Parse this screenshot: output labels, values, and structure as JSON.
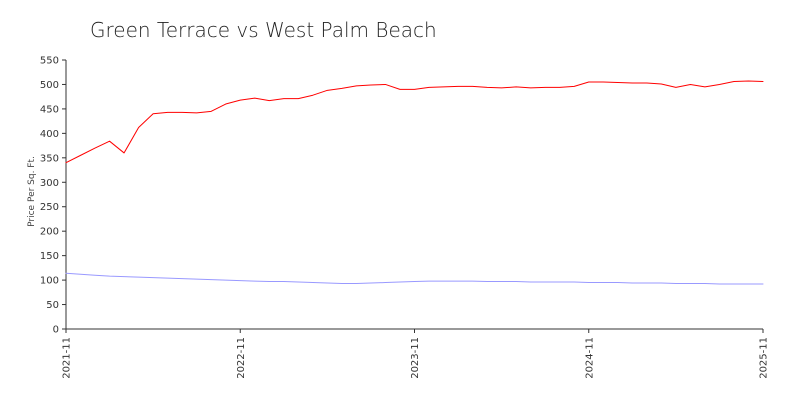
{
  "chart_data": {
    "type": "line",
    "title": "Green Terrace vs West Palm Beach",
    "xlabel": "",
    "ylabel": "Price Per Sq. Ft.",
    "ylim": [
      0,
      550
    ],
    "yticks": [
      0,
      50,
      100,
      150,
      200,
      250,
      300,
      350,
      400,
      450,
      500,
      550
    ],
    "x_tick_labels": [
      "2021-11",
      "2022-11",
      "2023-11",
      "2024-11",
      "2025-11"
    ],
    "x": [
      "2021-11",
      "2021-12",
      "2022-01",
      "2022-02",
      "2022-03",
      "2022-04",
      "2022-05",
      "2022-06",
      "2022-07",
      "2022-08",
      "2022-09",
      "2022-10",
      "2022-11",
      "2022-12",
      "2023-01",
      "2023-02",
      "2023-03",
      "2023-04",
      "2023-05",
      "2023-06",
      "2023-07",
      "2023-08",
      "2023-09",
      "2023-10",
      "2023-11",
      "2023-12",
      "2024-01",
      "2024-02",
      "2024-03",
      "2024-04",
      "2024-05",
      "2024-06",
      "2024-07",
      "2024-08",
      "2024-09",
      "2024-10",
      "2024-11",
      "2024-12",
      "2025-01",
      "2025-02",
      "2025-03",
      "2025-04",
      "2025-05",
      "2025-06",
      "2025-07",
      "2025-08",
      "2025-09",
      "2025-10",
      "2025-11"
    ],
    "series": [
      {
        "color": "#ff0000",
        "values": [
          340,
          355,
          370,
          384,
          360,
          412,
          440,
          443,
          443,
          442,
          445,
          460,
          468,
          472,
          467,
          471,
          471,
          478,
          488,
          492,
          497,
          499,
          500,
          490,
          490,
          494,
          495,
          496,
          496,
          494,
          493,
          495,
          493,
          494,
          494,
          496,
          505,
          505,
          504,
          503,
          503,
          501,
          494,
          500,
          495,
          500,
          506,
          507,
          506
        ]
      },
      {
        "color": "#9999ff",
        "values": [
          114,
          112,
          110,
          108,
          107,
          106,
          105,
          104,
          103,
          102,
          101,
          100,
          99,
          98,
          97,
          97,
          96,
          95,
          94,
          93,
          93,
          94,
          95,
          96,
          97,
          98,
          98,
          98,
          98,
          97,
          97,
          97,
          96,
          96,
          96,
          96,
          95,
          95,
          95,
          94,
          94,
          94,
          93,
          93,
          93,
          92,
          92,
          92,
          92
        ]
      }
    ],
    "grid": false,
    "legend": "none"
  }
}
